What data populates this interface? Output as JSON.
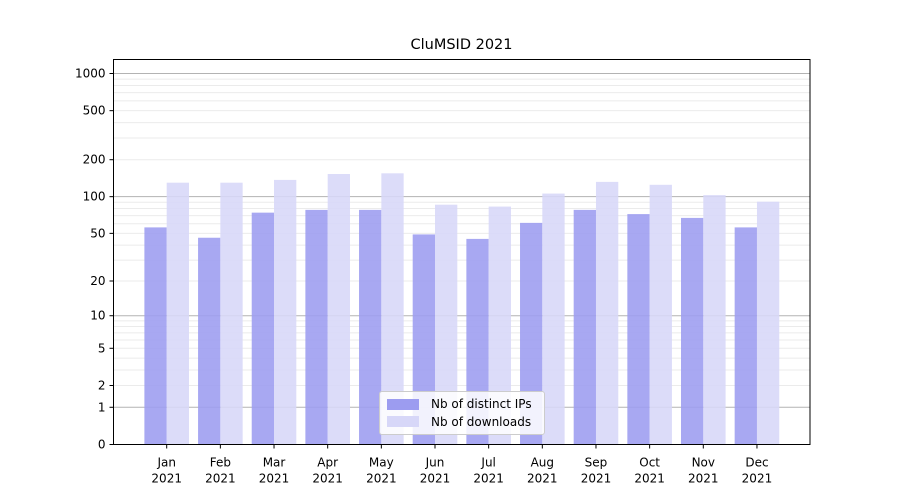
{
  "chart_data": {
    "type": "bar",
    "title": "CluMSID 2021",
    "categories": [
      "Jan 2021",
      "Feb 2021",
      "Mar 2021",
      "Apr 2021",
      "May 2021",
      "Jun 2021",
      "Jul 2021",
      "Aug 2021",
      "Sep 2021",
      "Oct 2021",
      "Nov 2021",
      "Dec 2021"
    ],
    "month_labels": [
      "Jan",
      "Feb",
      "Mar",
      "Apr",
      "May",
      "Jun",
      "Jul",
      "Aug",
      "Sep",
      "Oct",
      "Nov",
      "Dec"
    ],
    "year_label": "2021",
    "series": [
      {
        "name": "Nb of distinct IPs",
        "color": "#9c9cf0",
        "values": [
          56,
          46,
          74,
          78,
          78,
          49,
          45,
          61,
          78,
          72,
          67,
          56
        ]
      },
      {
        "name": "Nb of downloads",
        "color": "#d7d7f8",
        "values": [
          130,
          130,
          137,
          153,
          155,
          86,
          83,
          106,
          132,
          125,
          103,
          91
        ]
      }
    ],
    "y_axis": {
      "scale": "log1p",
      "tick_values": [
        0,
        1,
        2,
        5,
        10,
        20,
        50,
        100,
        200,
        500,
        1000
      ],
      "tick_labels": [
        "0",
        "1",
        "2",
        "5",
        "10",
        "20",
        "50",
        "100",
        "200",
        "500",
        "1000"
      ],
      "ylim": [
        0,
        1000
      ]
    },
    "x_axis": {
      "tick_labels_two_lines": true
    },
    "grid": {
      "major_values": [
        1,
        10,
        100,
        1000
      ],
      "minor_multiples": [
        2,
        3,
        4,
        5,
        6,
        7,
        8,
        9
      ],
      "major_color": "#b3b3b3",
      "minor_color": "#ebebeb"
    },
    "legend": {
      "position": "lower center"
    },
    "colors": {
      "background": "#ffffff",
      "spine": "#000000"
    }
  }
}
